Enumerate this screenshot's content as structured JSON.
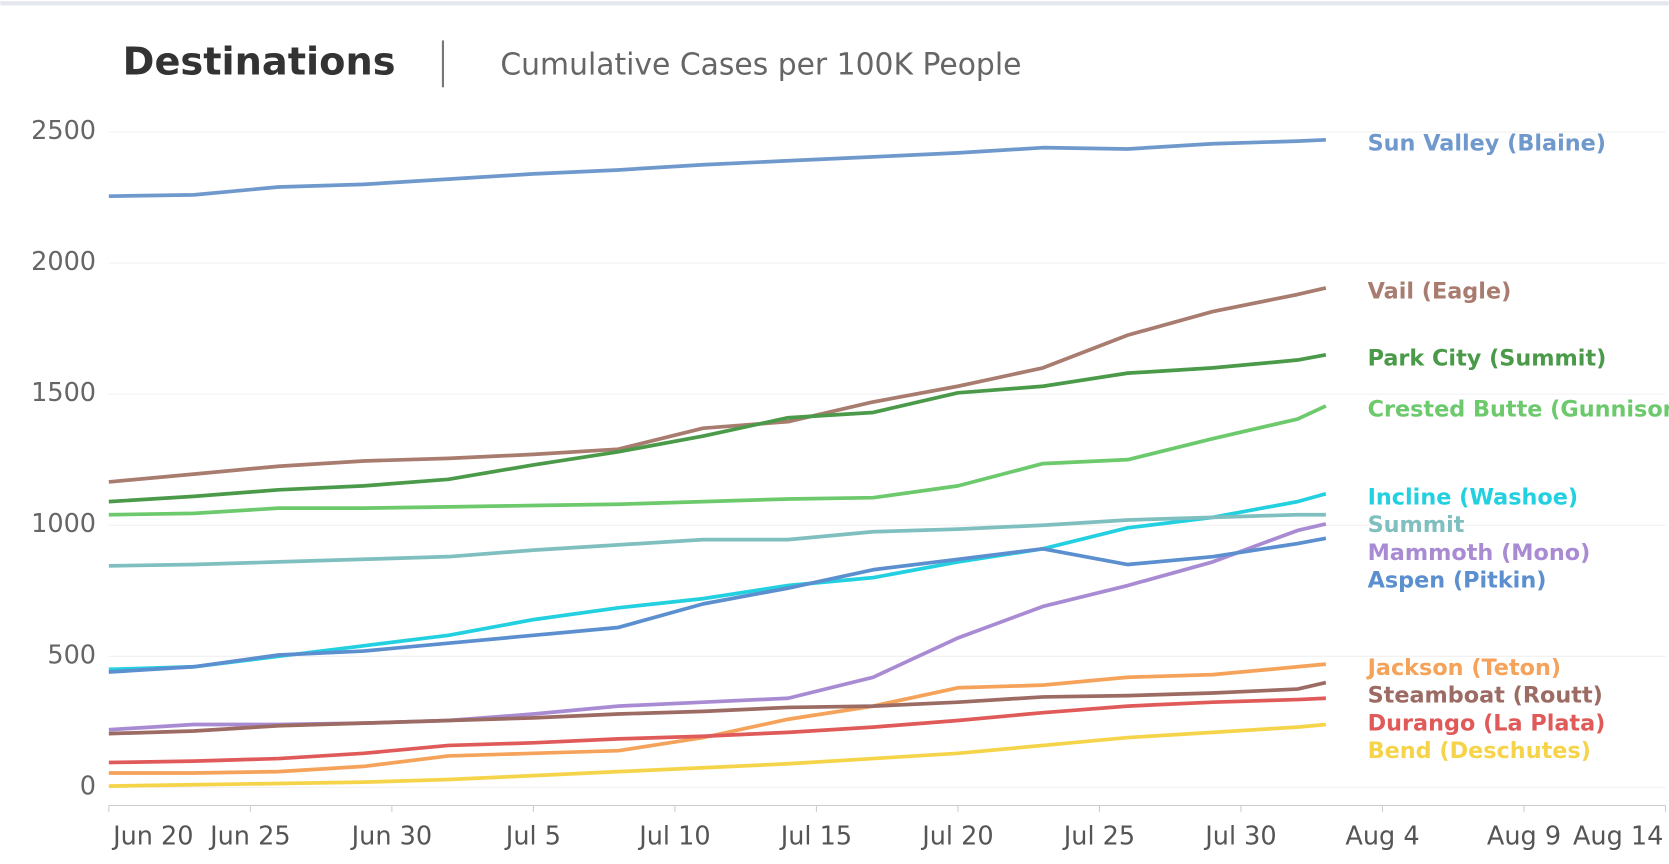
{
  "chart_data": {
    "type": "line",
    "title": "Destinations",
    "subtitle": "Cumulative Cases per 100K People",
    "x": [
      "Jun 20",
      "Jun 23",
      "Jun 26",
      "Jun 29",
      "Jul 2",
      "Jul 5",
      "Jul 8",
      "Jul 11",
      "Jul 14",
      "Jul 17",
      "Jul 20",
      "Jul 23",
      "Jul 26",
      "Jul 29",
      "Aug 1",
      "Aug 2"
    ],
    "xlim": [
      "Jun 20",
      "Aug 14"
    ],
    "xticks": [
      "Jun 20",
      "Jun 25",
      "Jun 30",
      "Jul 5",
      "Jul 10",
      "Jul 15",
      "Jul 20",
      "Jul 25",
      "Jul 30",
      "Aug 4",
      "Aug 9",
      "Aug 14"
    ],
    "ylim": [
      0,
      2500
    ],
    "yticks": [
      0,
      500,
      1000,
      1500,
      2000,
      2500
    ],
    "grid": true,
    "series": [
      {
        "name": "Sun Valley (Blaine)",
        "color": "#6f99cc",
        "values": [
          2255,
          2260,
          2290,
          2300,
          2320,
          2340,
          2355,
          2375,
          2390,
          2405,
          2420,
          2440,
          2435,
          2455,
          2465,
          2470
        ]
      },
      {
        "name": "Vail (Eagle)",
        "color": "#a87c6f",
        "values": [
          1165,
          1195,
          1225,
          1245,
          1255,
          1270,
          1290,
          1370,
          1395,
          1470,
          1530,
          1600,
          1725,
          1815,
          1880,
          1905
        ]
      },
      {
        "name": "Park City (Summit)",
        "color": "#4a9a4a",
        "values": [
          1090,
          1110,
          1135,
          1150,
          1175,
          1230,
          1280,
          1340,
          1410,
          1430,
          1505,
          1530,
          1580,
          1600,
          1630,
          1650
        ]
      },
      {
        "name": "Crested Butte (Gunnison)",
        "color": "#6cc96c",
        "values": [
          1040,
          1045,
          1065,
          1065,
          1070,
          1075,
          1080,
          1090,
          1100,
          1105,
          1150,
          1235,
          1250,
          1330,
          1405,
          1455
        ]
      },
      {
        "name": "Incline (Washoe)",
        "color": "#22d0e0",
        "values": [
          450,
          460,
          500,
          540,
          580,
          640,
          685,
          720,
          770,
          800,
          860,
          910,
          990,
          1030,
          1090,
          1120
        ]
      },
      {
        "name": "Summit",
        "color": "#7fbfbf",
        "values": [
          845,
          850,
          860,
          870,
          880,
          905,
          925,
          945,
          945,
          975,
          985,
          1000,
          1020,
          1030,
          1040,
          1040
        ]
      },
      {
        "name": "Mammoth (Mono)",
        "color": "#a98bd3",
        "values": [
          220,
          240,
          240,
          245,
          255,
          280,
          310,
          325,
          340,
          420,
          570,
          690,
          770,
          860,
          980,
          1005
        ]
      },
      {
        "name": "Aspen (Pitkin)",
        "color": "#5b8fcf",
        "values": [
          440,
          460,
          505,
          520,
          550,
          580,
          610,
          700,
          760,
          830,
          870,
          910,
          850,
          880,
          930,
          950
        ]
      },
      {
        "name": "Jackson (Teton)",
        "color": "#f5a25a",
        "values": [
          55,
          55,
          60,
          80,
          120,
          130,
          140,
          190,
          260,
          310,
          380,
          390,
          420,
          430,
          460,
          470
        ]
      },
      {
        "name": "Steamboat (Routt)",
        "color": "#9c6b63",
        "values": [
          205,
          215,
          235,
          245,
          255,
          265,
          280,
          290,
          305,
          310,
          325,
          345,
          350,
          360,
          375,
          400
        ]
      },
      {
        "name": "Durango (La Plata)",
        "color": "#e05a5a",
        "values": [
          95,
          100,
          110,
          130,
          160,
          170,
          185,
          195,
          210,
          230,
          255,
          285,
          310,
          325,
          335,
          340
        ]
      },
      {
        "name": "Bend (Deschutes)",
        "color": "#f5d44a",
        "values": [
          5,
          10,
          15,
          20,
          30,
          45,
          60,
          75,
          90,
          110,
          130,
          160,
          190,
          210,
          230,
          240
        ]
      }
    ]
  }
}
